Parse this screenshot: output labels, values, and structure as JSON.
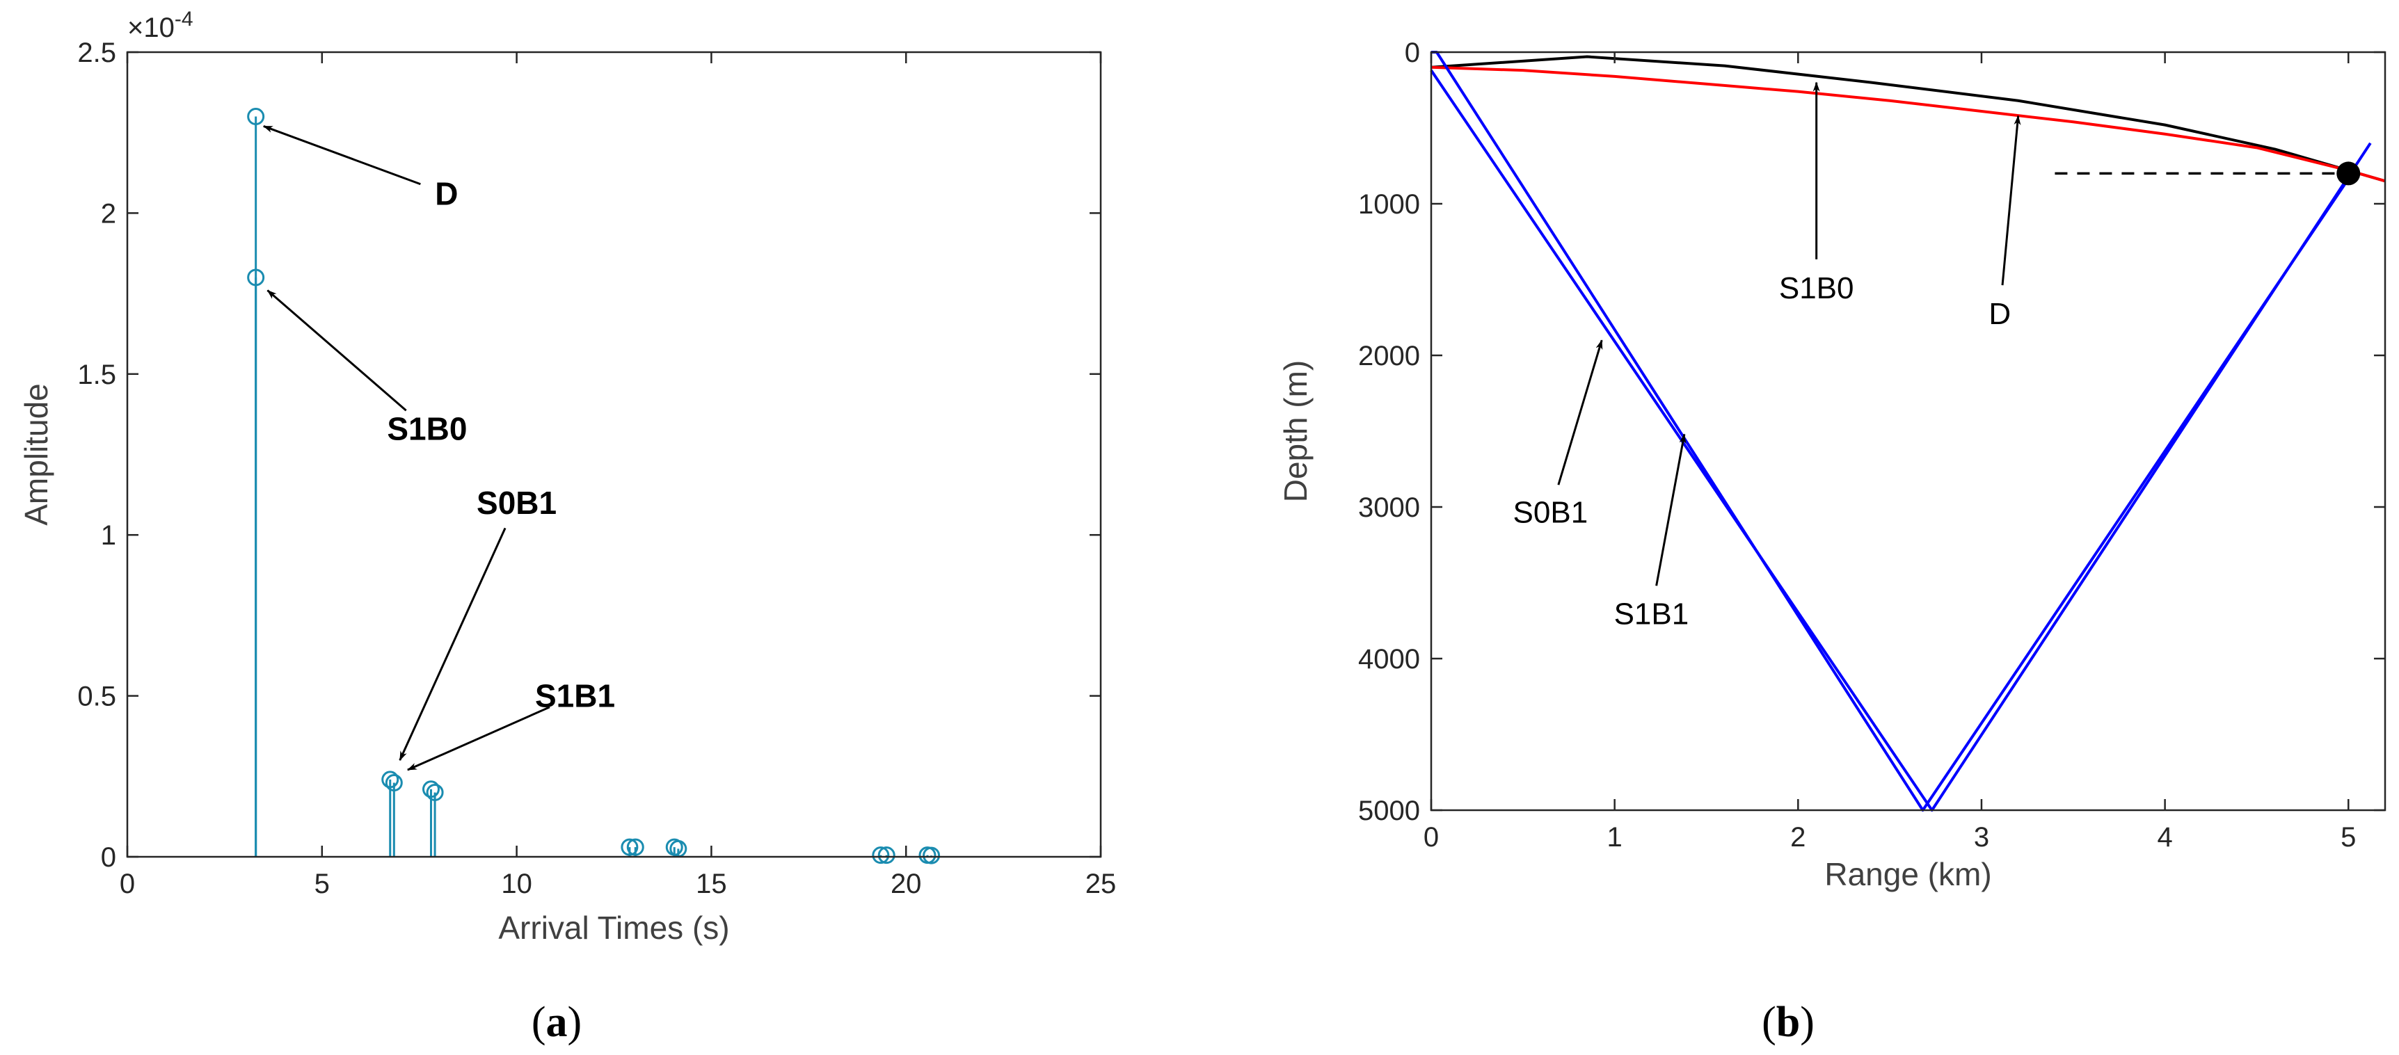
{
  "chart_data": [
    {
      "type": "stem",
      "panel_label_open": "(",
      "panel_label_letter": "a",
      "panel_label_close": ")",
      "xlabel": "Arrival Times (s)",
      "ylabel": "Amplitude",
      "exponent_label": "×10",
      "exponent_power": "-4",
      "xlim": [
        0,
        25
      ],
      "ylim": [
        0,
        2.5
      ],
      "xticks": [
        0,
        5,
        10,
        15,
        20,
        25
      ],
      "yticks": [
        0,
        0.5,
        1,
        1.5,
        2,
        2.5
      ],
      "xtick_labels": [
        "0",
        "5",
        "10",
        "15",
        "20",
        "25"
      ],
      "ytick_labels": [
        "0",
        "0.5",
        "1",
        "1.5",
        "2",
        "2.5"
      ],
      "color": "#1a8cb0",
      "stems": [
        {
          "x": 3.3,
          "y": 2.3
        },
        {
          "x": 3.3,
          "y": 1.8
        },
        {
          "x": 6.75,
          "y": 0.24
        },
        {
          "x": 6.85,
          "y": 0.23
        },
        {
          "x": 7.8,
          "y": 0.21
        },
        {
          "x": 7.9,
          "y": 0.2
        },
        {
          "x": 12.9,
          "y": 0.03
        },
        {
          "x": 13.05,
          "y": 0.03
        },
        {
          "x": 14.05,
          "y": 0.03
        },
        {
          "x": 14.15,
          "y": 0.025
        },
        {
          "x": 19.35,
          "y": 0.005
        },
        {
          "x": 19.5,
          "y": 0.005
        },
        {
          "x": 20.55,
          "y": 0.005
        },
        {
          "x": 20.65,
          "y": 0.004
        }
      ],
      "annotations": [
        {
          "text": "D",
          "text_x": 8.2,
          "text_y": 2.06,
          "tip_x": 3.5,
          "tip_y": 2.27
        },
        {
          "text": "S1B0",
          "text_x": 7.7,
          "text_y": 1.33,
          "tip_x": 3.6,
          "tip_y": 1.76
        },
        {
          "text": "S0B1",
          "text_x": 10.0,
          "text_y": 1.1,
          "tip_x": 7.0,
          "tip_y": 0.3
        },
        {
          "text": "S1B1",
          "text_x": 11.5,
          "text_y": 0.5,
          "tip_x": 7.2,
          "tip_y": 0.27
        }
      ]
    },
    {
      "type": "line",
      "panel_label_open": "(",
      "panel_label_letter": "b",
      "panel_label_close": ")",
      "xlabel": "Range (km)",
      "ylabel": "Depth (m)",
      "xlim": [
        0,
        5.2
      ],
      "ylim": [
        0,
        5000
      ],
      "y_reversed": true,
      "xticks": [
        0,
        1,
        2,
        3,
        4,
        5
      ],
      "yticks": [
        0,
        1000,
        2000,
        3000,
        4000,
        5000
      ],
      "xtick_labels": [
        "0",
        "1",
        "2",
        "3",
        "4",
        "5"
      ],
      "ytick_labels": [
        "0",
        "1000",
        "2000",
        "3000",
        "4000",
        "5000"
      ],
      "series": [
        {
          "color": "#000000",
          "x": [
            0,
            0.85,
            1.6,
            2.4,
            3.2,
            4.0,
            4.6,
            5.0,
            5.2
          ],
          "y": [
            100,
            30,
            90,
            200,
            320,
            480,
            640,
            780,
            850
          ]
        },
        {
          "color": "#ff0000",
          "x": [
            0,
            0.5,
            1.0,
            1.5,
            2.0,
            2.5,
            3.0,
            3.5,
            4.0,
            4.5,
            5.0,
            5.2
          ],
          "y": [
            100,
            120,
            160,
            210,
            260,
            320,
            390,
            460,
            540,
            630,
            780,
            850
          ]
        },
        {
          "color": "#0000ff",
          "x": [
            0,
            0.03,
            2.68,
            5.02
          ],
          "y": [
            0,
            0,
            5000,
            800
          ]
        },
        {
          "color": "#0000ff",
          "x": [
            0,
            2.73,
            5.12
          ],
          "y": [
            120,
            5000,
            600
          ]
        }
      ],
      "receiver": {
        "x": 5.0,
        "y": 800,
        "color": "#000000"
      },
      "dashed_line": {
        "x": [
          3.4,
          5.0
        ],
        "y": 800,
        "color": "#000000"
      },
      "annotations": [
        {
          "text": "S1B0",
          "text_x": 2.1,
          "text_y": 1550,
          "tip_x": 2.1,
          "tip_y": 200
        },
        {
          "text": "D",
          "text_x": 3.1,
          "text_y": 1720,
          "tip_x": 3.2,
          "tip_y": 420
        },
        {
          "text": "S0B1",
          "text_x": 0.65,
          "text_y": 3030,
          "tip_x": 0.93,
          "tip_y": 1900
        },
        {
          "text": "S1B1",
          "text_x": 1.2,
          "text_y": 3700,
          "tip_x": 1.38,
          "tip_y": 2520
        }
      ]
    }
  ]
}
